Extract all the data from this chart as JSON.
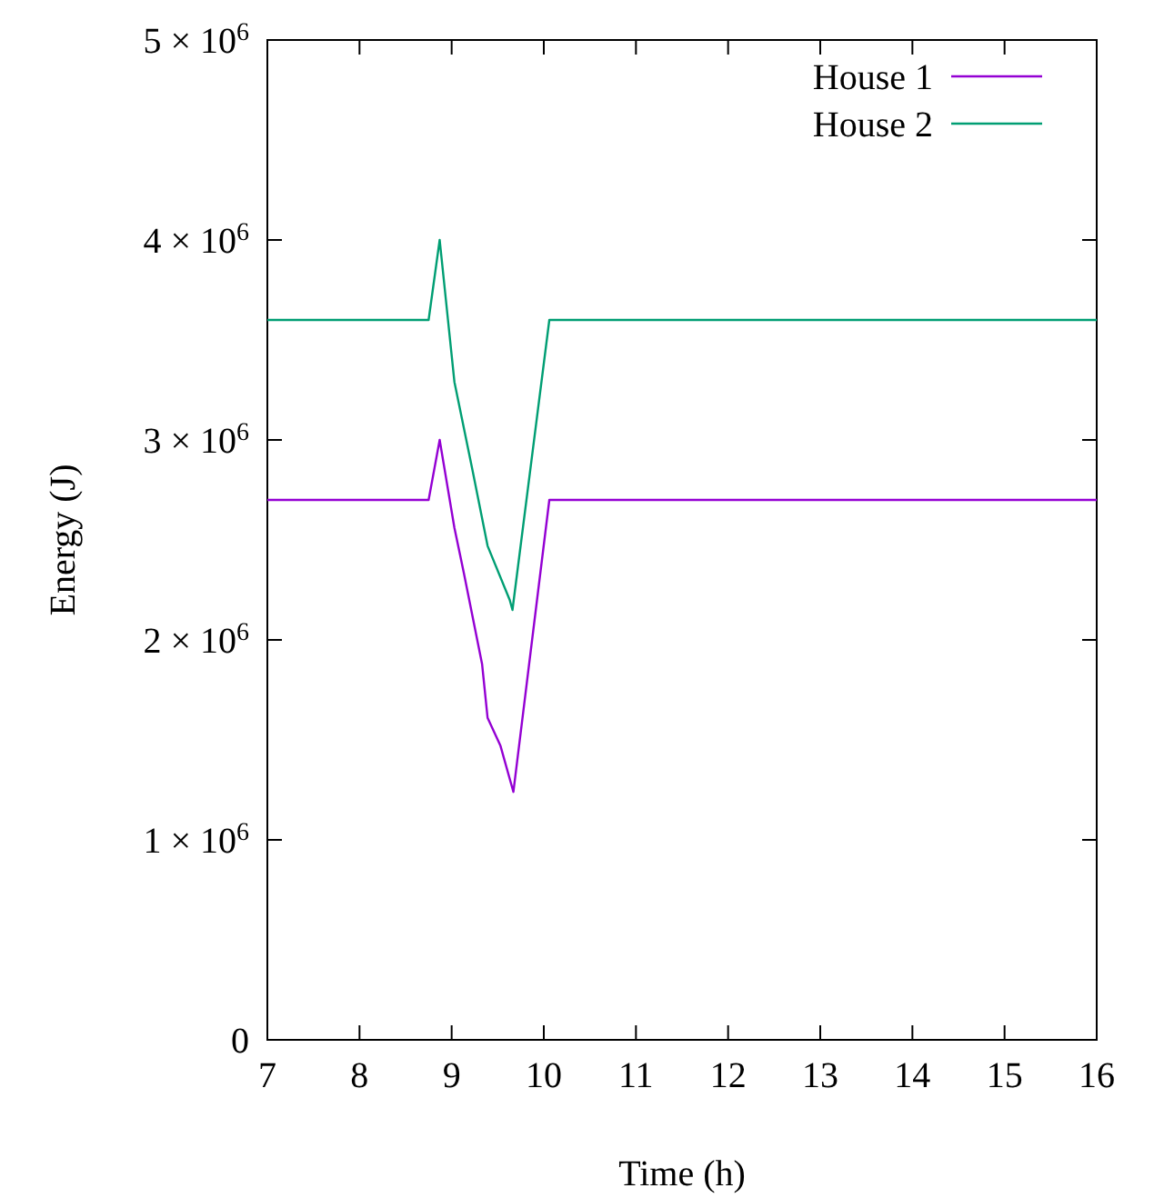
{
  "chart_data": {
    "type": "line",
    "xlabel": "Time (h)",
    "ylabel": "Energy (J)",
    "xlim": [
      7,
      16
    ],
    "xticks": [
      7,
      8,
      9,
      10,
      11,
      12,
      13,
      14,
      15,
      16
    ],
    "ylim": [
      0,
      5000000
    ],
    "yticks": [
      {
        "value": 0,
        "label": "0"
      },
      {
        "value": 1000000,
        "label": "1 × 10$^{6}$"
      },
      {
        "value": 2000000,
        "label": "2 × 10$^{6}$"
      },
      {
        "value": 3000000,
        "label": "3 × 10$^{6}$"
      },
      {
        "value": 4000000,
        "label": "4 × 10$^{6}$"
      },
      {
        "value": 5000000,
        "label": "5 × 10$^{6}$"
      }
    ],
    "legend": "top right",
    "grid": false,
    "marker": "none",
    "line_style": "solid",
    "series": [
      {
        "name": "House 1",
        "color": "#9400d3",
        "x": [
          7,
          8.75,
          8.87,
          9.03,
          9.13,
          9.33,
          9.39,
          9.53,
          9.67,
          10.06,
          16
        ],
        "values": [
          2700000,
          2700000,
          3000000,
          2560000,
          2340000,
          1880000,
          1610000,
          1470000,
          1240000,
          2700000,
          2700000
        ]
      },
      {
        "name": "House 2",
        "color": "#009e73",
        "x": [
          7,
          8.75,
          8.87,
          9.03,
          9.23,
          9.39,
          9.63,
          9.66,
          10.06,
          16
        ],
        "values": [
          3600000,
          3600000,
          4000000,
          3290000,
          2840000,
          2470000,
          2200000,
          2150000,
          3600000,
          3600000
        ]
      }
    ]
  }
}
